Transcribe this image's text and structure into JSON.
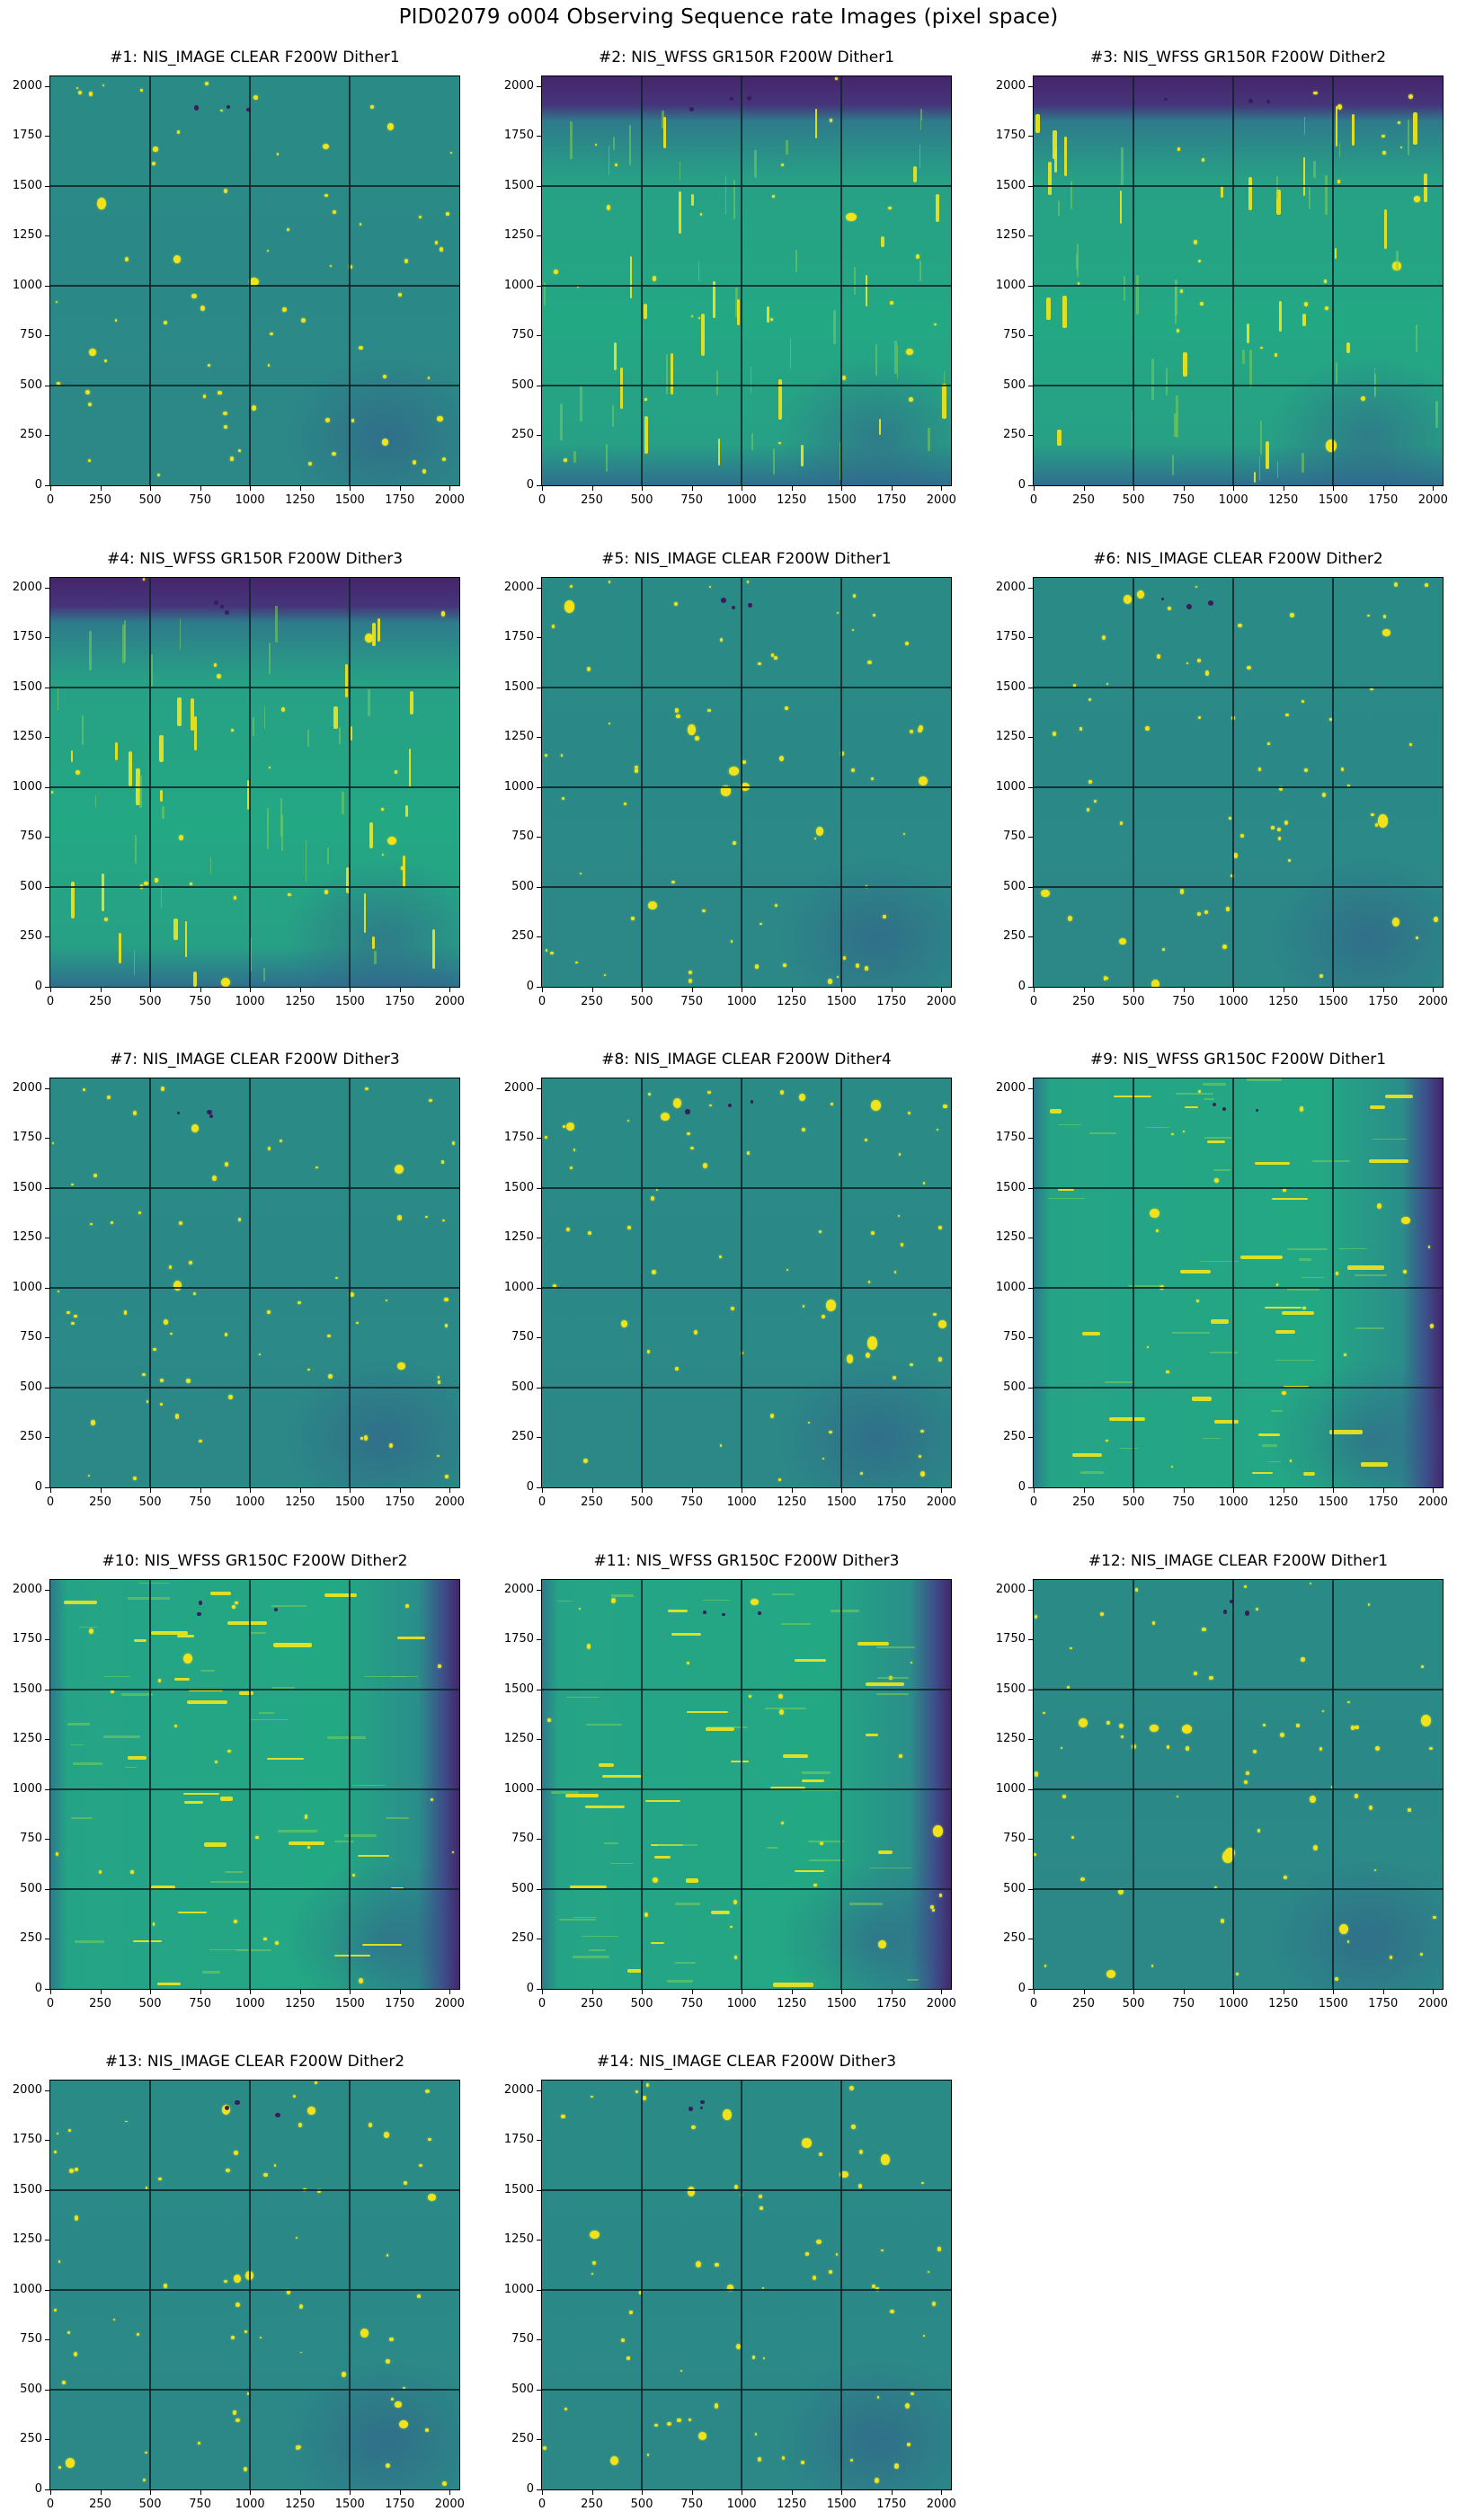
{
  "figure": {
    "suptitle": "PID02079 o004 Observing Sequence rate Images (pixel space)",
    "colormap": "viridis",
    "colors": {
      "background_teal": "#2a8a86",
      "bright_source": "#f2e21c",
      "dark_purple": "#45256b",
      "gridline": "#0f2328"
    }
  },
  "axes_ticks": {
    "x": [
      "0",
      "250",
      "500",
      "750",
      "1000",
      "1250",
      "1500",
      "1750",
      "2000"
    ],
    "y": [
      "0",
      "250",
      "500",
      "750",
      "1000",
      "1250",
      "1500",
      "1750",
      "2000"
    ]
  },
  "panels": [
    {
      "title": "#1: NIS_IMAGE CLEAR F200W Dither1"
    },
    {
      "title": "#2: NIS_WFSS GR150R F200W Dither1"
    },
    {
      "title": "#3: NIS_WFSS GR150R F200W Dither2"
    },
    {
      "title": "#4: NIS_WFSS GR150R F200W Dither3"
    },
    {
      "title": "#5: NIS_IMAGE CLEAR F200W Dither1"
    },
    {
      "title": "#6: NIS_IMAGE CLEAR F200W Dither2"
    },
    {
      "title": "#7: NIS_IMAGE CLEAR F200W Dither3"
    },
    {
      "title": "#8: NIS_IMAGE CLEAR F200W Dither4"
    },
    {
      "title": "#9: NIS_WFSS GR150C F200W Dither1"
    },
    {
      "title": "#10: NIS_WFSS GR150C F200W Dither2"
    },
    {
      "title": "#11: NIS_WFSS GR150C F200W Dither3"
    },
    {
      "title": "#12: NIS_IMAGE CLEAR F200W Dither1"
    },
    {
      "title": "#13: NIS_IMAGE CLEAR F200W Dither2"
    },
    {
      "title": "#14: NIS_IMAGE CLEAR F200W Dither3"
    }
  ],
  "chart_data": {
    "type": "heatmap",
    "title": "PID02079 o004 Observing Sequence rate Images (pixel space)",
    "layout": {
      "rows": 5,
      "cols": 3,
      "n_panels": 14
    },
    "xlabel": "",
    "ylabel": "",
    "xlim": [
      0,
      2048
    ],
    "ylim": [
      0,
      2048
    ],
    "xticks": [
      0,
      250,
      500,
      750,
      1000,
      1250,
      1500,
      1750,
      2000
    ],
    "yticks": [
      0,
      250,
      500,
      750,
      1000,
      1250,
      1500,
      1750,
      2000
    ],
    "gridlines": {
      "x": [
        500,
        1000,
        1500
      ],
      "y": [
        500,
        1000,
        1500
      ]
    },
    "colormap": "viridis",
    "series": [
      {
        "name": "#1: NIS_IMAGE CLEAR F200W Dither1",
        "mode": "NIS_IMAGE",
        "pupil": "CLEAR",
        "filter": "F200W",
        "dither": 1,
        "features": "point/extended sources; bright star ~(1850,70)"
      },
      {
        "name": "#2: NIS_WFSS GR150R F200W Dither1",
        "mode": "NIS_WFSS",
        "pupil": "GR150R",
        "filter": "F200W",
        "dither": 1,
        "features": "vertical dispersed spectra; low-signal band at top (y>1950)"
      },
      {
        "name": "#3: NIS_WFSS GR150R F200W Dither2",
        "mode": "NIS_WFSS",
        "pupil": "GR150R",
        "filter": "F200W",
        "dither": 2,
        "features": "vertical dispersed spectra; low-signal band at top"
      },
      {
        "name": "#4: NIS_WFSS GR150R F200W Dither3",
        "mode": "NIS_WFSS",
        "pupil": "GR150R",
        "filter": "F200W",
        "dither": 3,
        "features": "vertical dispersed spectra; low-signal band at top"
      },
      {
        "name": "#5: NIS_IMAGE CLEAR F200W Dither1",
        "mode": "NIS_IMAGE",
        "pupil": "CLEAR",
        "filter": "F200W",
        "dither": 1,
        "features": "point/extended sources"
      },
      {
        "name": "#6: NIS_IMAGE CLEAR F200W Dither2",
        "mode": "NIS_IMAGE",
        "pupil": "CLEAR",
        "filter": "F200W",
        "dither": 2,
        "features": "point/extended sources"
      },
      {
        "name": "#7: NIS_IMAGE CLEAR F200W Dither3",
        "mode": "NIS_IMAGE",
        "pupil": "CLEAR",
        "filter": "F200W",
        "dither": 3,
        "features": "point/extended sources"
      },
      {
        "name": "#8: NIS_IMAGE CLEAR F200W Dither4",
        "mode": "NIS_IMAGE",
        "pupil": "CLEAR",
        "filter": "F200W",
        "dither": 4,
        "features": "point/extended sources"
      },
      {
        "name": "#9: NIS_WFSS GR150C F200W Dither1",
        "mode": "NIS_WFSS",
        "pupil": "GR150C",
        "filter": "F200W",
        "dither": 1,
        "features": "horizontal dispersed spectra; low-signal band at right (x>1950)"
      },
      {
        "name": "#10: NIS_WFSS GR150C F200W Dither2",
        "mode": "NIS_WFSS",
        "pupil": "GR150C",
        "filter": "F200W",
        "dither": 2,
        "features": "horizontal dispersed spectra; low-signal band at right"
      },
      {
        "name": "#11: NIS_WFSS GR150C F200W Dither3",
        "mode": "NIS_WFSS",
        "pupil": "GR150C",
        "filter": "F200W",
        "dither": 3,
        "features": "horizontal dispersed spectra; low-signal band at right"
      },
      {
        "name": "#12: NIS_IMAGE CLEAR F200W Dither1",
        "mode": "NIS_IMAGE",
        "pupil": "CLEAR",
        "filter": "F200W",
        "dither": 1,
        "features": "point/extended sources"
      },
      {
        "name": "#13: NIS_IMAGE CLEAR F200W Dither2",
        "mode": "NIS_IMAGE",
        "pupil": "CLEAR",
        "filter": "F200W",
        "dither": 2,
        "features": "point/extended sources"
      },
      {
        "name": "#14: NIS_IMAGE CLEAR F200W Dither3",
        "mode": "NIS_IMAGE",
        "pupil": "CLEAR",
        "filter": "F200W",
        "dither": 3,
        "features": "point/extended sources"
      }
    ]
  }
}
